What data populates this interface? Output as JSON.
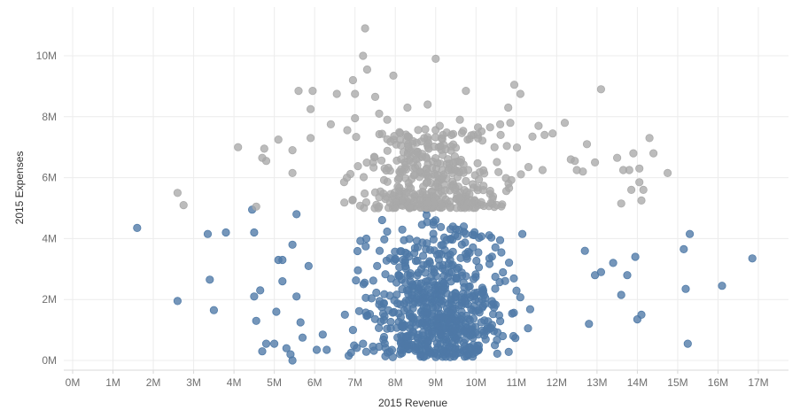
{
  "chart_data": {
    "type": "scatter",
    "title": "",
    "xlabel": "2015 Revenue",
    "ylabel": "2015 Expenses",
    "x_unit": "M",
    "y_unit": "M",
    "xlim": [
      0,
      17.8
    ],
    "ylim": [
      -0.2,
      11.2
    ],
    "grid": true,
    "x_ticks": [
      {
        "value": 0,
        "label": "0M"
      },
      {
        "value": 1,
        "label": "1M"
      },
      {
        "value": 2,
        "label": "2M"
      },
      {
        "value": 3,
        "label": "3M"
      },
      {
        "value": 4,
        "label": "4M"
      },
      {
        "value": 5,
        "label": "5M"
      },
      {
        "value": 6,
        "label": "6M"
      },
      {
        "value": 7,
        "label": "7M"
      },
      {
        "value": 8,
        "label": "8M"
      },
      {
        "value": 9,
        "label": "9M"
      },
      {
        "value": 10,
        "label": "10M"
      },
      {
        "value": 11,
        "label": "11M"
      },
      {
        "value": 12,
        "label": "12M"
      },
      {
        "value": 13,
        "label": "13M"
      },
      {
        "value": 14,
        "label": "14M"
      },
      {
        "value": 15,
        "label": "15M"
      },
      {
        "value": 16,
        "label": "16M"
      },
      {
        "value": 17,
        "label": "17M"
      }
    ],
    "y_ticks": [
      {
        "value": 0,
        "label": "0M"
      },
      {
        "value": 2,
        "label": "2M"
      },
      {
        "value": 4,
        "label": "4M"
      },
      {
        "value": 6,
        "label": "6M"
      },
      {
        "value": 8,
        "label": "8M"
      },
      {
        "value": 10,
        "label": "10M"
      }
    ],
    "series": [
      {
        "color": "#4e79a7",
        "points": [
          [
            1.6,
            4.35
          ],
          [
            2.6,
            1.95
          ],
          [
            3.35,
            4.15
          ],
          [
            3.4,
            2.65
          ],
          [
            3.5,
            1.65
          ],
          [
            3.8,
            4.2
          ],
          [
            4.45,
            4.95
          ],
          [
            4.5,
            4.2
          ],
          [
            4.5,
            2.1
          ],
          [
            4.55,
            1.3
          ],
          [
            4.65,
            2.3
          ],
          [
            4.7,
            0.3
          ],
          [
            4.8,
            0.55
          ],
          [
            5.0,
            0.55
          ],
          [
            5.05,
            1.6
          ],
          [
            5.1,
            3.3
          ],
          [
            5.2,
            2.6
          ],
          [
            5.2,
            3.3
          ],
          [
            5.3,
            0.4
          ],
          [
            5.4,
            0.2
          ],
          [
            5.45,
            0.0
          ],
          [
            5.45,
            3.8
          ],
          [
            5.55,
            2.1
          ],
          [
            5.55,
            4.8
          ],
          [
            5.65,
            1.25
          ],
          [
            5.7,
            0.75
          ],
          [
            5.85,
            3.1
          ],
          [
            6.05,
            0.35
          ],
          [
            6.2,
            0.85
          ],
          [
            6.3,
            0.35
          ],
          [
            6.75,
            1.5
          ],
          [
            6.9,
            0.25
          ],
          [
            6.95,
            1.0
          ],
          [
            7.2,
            0.55
          ],
          [
            7.6,
            0.45
          ],
          [
            7.55,
            3.1
          ],
          [
            12.7,
            3.6
          ],
          [
            12.8,
            1.2
          ],
          [
            12.95,
            2.8
          ],
          [
            13.1,
            2.9
          ],
          [
            13.4,
            3.2
          ],
          [
            13.6,
            2.15
          ],
          [
            13.75,
            2.8
          ],
          [
            13.95,
            3.4
          ],
          [
            14.0,
            1.35
          ],
          [
            14.1,
            1.5
          ],
          [
            15.15,
            3.65
          ],
          [
            15.2,
            2.35
          ],
          [
            15.25,
            0.55
          ],
          [
            15.3,
            4.15
          ],
          [
            16.1,
            2.45
          ],
          [
            16.85,
            3.35
          ]
        ]
      },
      {
        "color": "#a9a9a9",
        "points": [
          [
            2.6,
            5.5
          ],
          [
            2.75,
            5.1
          ],
          [
            4.1,
            7.0
          ],
          [
            4.55,
            5.05
          ],
          [
            4.7,
            6.65
          ],
          [
            4.75,
            6.95
          ],
          [
            4.8,
            6.55
          ],
          [
            5.1,
            7.25
          ],
          [
            5.45,
            6.15
          ],
          [
            5.45,
            6.9
          ],
          [
            5.6,
            8.85
          ],
          [
            5.9,
            8.25
          ],
          [
            5.95,
            8.85
          ],
          [
            5.9,
            7.3
          ],
          [
            6.4,
            7.75
          ],
          [
            6.55,
            8.75
          ],
          [
            6.8,
            6.0
          ],
          [
            6.95,
            9.2
          ],
          [
            7.0,
            8.75
          ],
          [
            7.0,
            7.95
          ],
          [
            7.2,
            10.0
          ],
          [
            7.25,
            10.9
          ],
          [
            7.3,
            9.55
          ],
          [
            7.45,
            6.5
          ],
          [
            7.5,
            8.65
          ],
          [
            7.6,
            8.1
          ],
          [
            7.8,
            7.9
          ],
          [
            7.95,
            9.35
          ],
          [
            8.3,
            8.3
          ],
          [
            8.8,
            8.4
          ],
          [
            9.0,
            9.9
          ],
          [
            9.1,
            7.7
          ],
          [
            9.6,
            7.9
          ],
          [
            9.75,
            8.85
          ],
          [
            10.05,
            7.65
          ],
          [
            10.35,
            7.65
          ],
          [
            10.6,
            7.75
          ],
          [
            10.8,
            8.3
          ],
          [
            10.85,
            7.8
          ],
          [
            10.95,
            9.05
          ],
          [
            11.1,
            8.75
          ],
          [
            11.4,
            7.35
          ],
          [
            11.55,
            7.7
          ],
          [
            11.7,
            7.4
          ],
          [
            11.9,
            7.45
          ],
          [
            12.2,
            7.8
          ],
          [
            12.35,
            6.6
          ],
          [
            12.45,
            6.55
          ],
          [
            12.5,
            6.25
          ],
          [
            12.65,
            6.2
          ],
          [
            12.75,
            7.1
          ],
          [
            12.95,
            6.5
          ],
          [
            13.1,
            8.9
          ],
          [
            13.5,
            6.65
          ],
          [
            13.6,
            5.15
          ],
          [
            13.65,
            6.25
          ],
          [
            13.8,
            6.25
          ],
          [
            13.85,
            5.6
          ],
          [
            13.9,
            6.8
          ],
          [
            14.05,
            6.3
          ],
          [
            14.05,
            5.85
          ],
          [
            14.1,
            5.25
          ],
          [
            14.15,
            5.6
          ],
          [
            14.3,
            7.3
          ],
          [
            14.4,
            6.8
          ],
          [
            14.75,
            6.15
          ],
          [
            11.3,
            6.35
          ],
          [
            11.65,
            6.25
          ]
        ]
      }
    ],
    "clusters": [
      {
        "series": 0,
        "count": 640,
        "x_mean": 9.0,
        "x_sd": 1.6,
        "y_min": 0.1,
        "y_max": 5.0,
        "y_bias": 0.55
      },
      {
        "series": 1,
        "count": 380,
        "x_mean": 8.9,
        "x_sd": 1.55,
        "y_min": 5.0,
        "y_max": 7.6,
        "y_bias": 1.7
      }
    ]
  }
}
